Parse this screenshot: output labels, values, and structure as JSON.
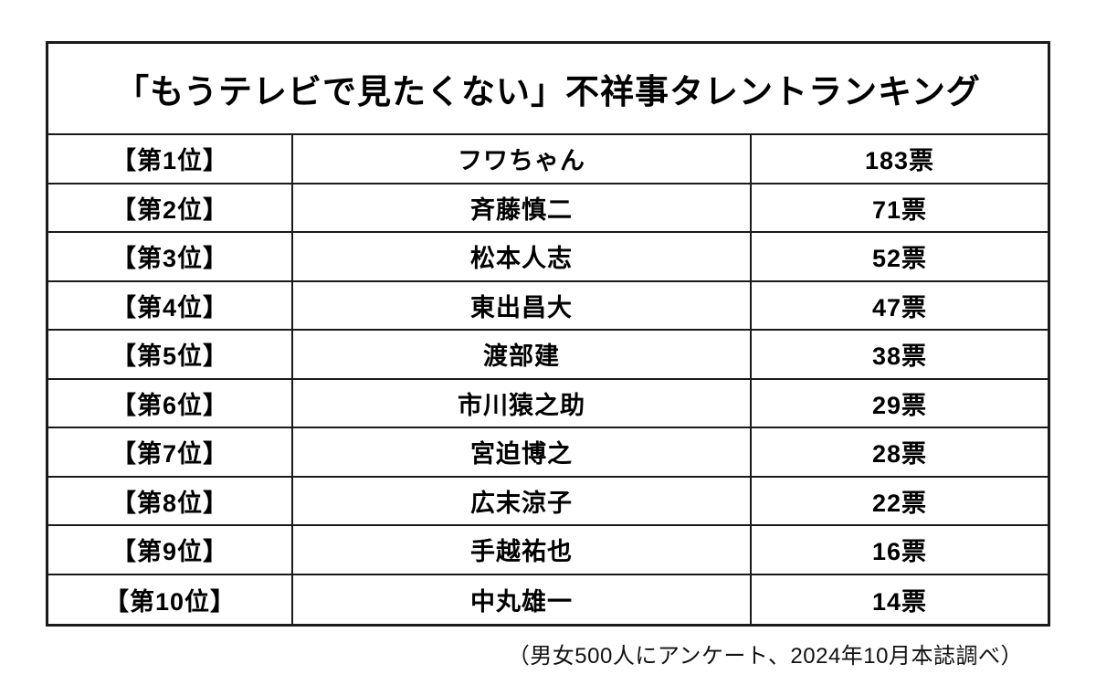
{
  "title": "「もうテレビで見たくない」不祥事タレントランキング",
  "footer_note": "（男女500人にアンケート、2024年10月本誌調べ）",
  "chart_data": {
    "type": "table",
    "title": "「もうテレビで見たくない」不祥事タレントランキング",
    "columns": [
      "rank",
      "name",
      "votes"
    ],
    "rows": [
      {
        "rank": "【第1位】",
        "name": "フワちゃん",
        "votes": "183票",
        "votes_numeric": 183
      },
      {
        "rank": "【第2位】",
        "name": "斉藤慎二",
        "votes": "71票",
        "votes_numeric": 71
      },
      {
        "rank": "【第3位】",
        "name": "松本人志",
        "votes": "52票",
        "votes_numeric": 52
      },
      {
        "rank": "【第4位】",
        "name": "東出昌大",
        "votes": "47票",
        "votes_numeric": 47
      },
      {
        "rank": "【第5位】",
        "name": "渡部建",
        "votes": "38票",
        "votes_numeric": 38
      },
      {
        "rank": "【第6位】",
        "name": "市川猿之助",
        "votes": "29票",
        "votes_numeric": 29
      },
      {
        "rank": "【第7位】",
        "name": "宮迫博之",
        "votes": "28票",
        "votes_numeric": 28
      },
      {
        "rank": "【第8位】",
        "name": "広末涼子",
        "votes": "22票",
        "votes_numeric": 22
      },
      {
        "rank": "【第9位】",
        "name": "手越祐也",
        "votes": "16票",
        "votes_numeric": 16
      },
      {
        "rank": "【第10位】",
        "name": "中丸雄一",
        "votes": "14票",
        "votes_numeric": 14
      }
    ],
    "note": "（男女500人にアンケート、2024年10月本誌調べ）",
    "layout": {
      "grid": "off",
      "legend": "none"
    },
    "colors": {
      "border": "#1a1a1a",
      "background": "#ffffff",
      "text": "#000000"
    }
  }
}
